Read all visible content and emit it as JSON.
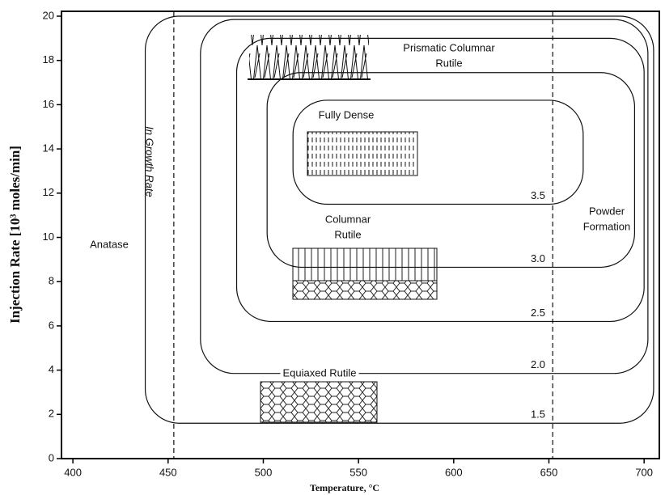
{
  "chart_data": {
    "type": "contour",
    "xlabel": "Temperature, °C",
    "ylabel": "Injection Rate [10³ moles/min]",
    "xlim": [
      394,
      708
    ],
    "ylim": [
      0,
      20.22
    ],
    "xticks": [
      400,
      450,
      500,
      550,
      600,
      650,
      700
    ],
    "yticks": [
      0,
      2,
      4,
      6,
      8,
      10,
      12,
      14,
      16,
      18,
      20
    ],
    "contours": [
      {
        "label": "1.5",
        "x": [
          438,
          705
        ],
        "y": [
          1.6,
          20
        ]
      },
      {
        "label": "2.0",
        "x": [
          467,
          702
        ],
        "y": [
          3.85,
          19.85
        ]
      },
      {
        "label": "2.5",
        "x": [
          486,
          700
        ],
        "y": [
          6.2,
          19
        ]
      },
      {
        "label": "3.0",
        "x": [
          502,
          695
        ],
        "y": [
          8.65,
          17.45
        ]
      },
      {
        "label": "3.5",
        "x": [
          515.6,
          668
        ],
        "y": [
          11.5,
          16.2
        ]
      }
    ],
    "reference_lines": [
      453,
      652
    ],
    "annotations": [
      [
        "Prismatic Columnar",
        "Rutile"
      ],
      [
        "Fully Dense"
      ],
      [
        "Columnar",
        "Rutile"
      ],
      [
        "Equiaxed Rutile"
      ],
      [
        "Anatase"
      ],
      [
        "Powder",
        "Formation"
      ],
      [
        "In Growth Rate"
      ]
    ]
  }
}
